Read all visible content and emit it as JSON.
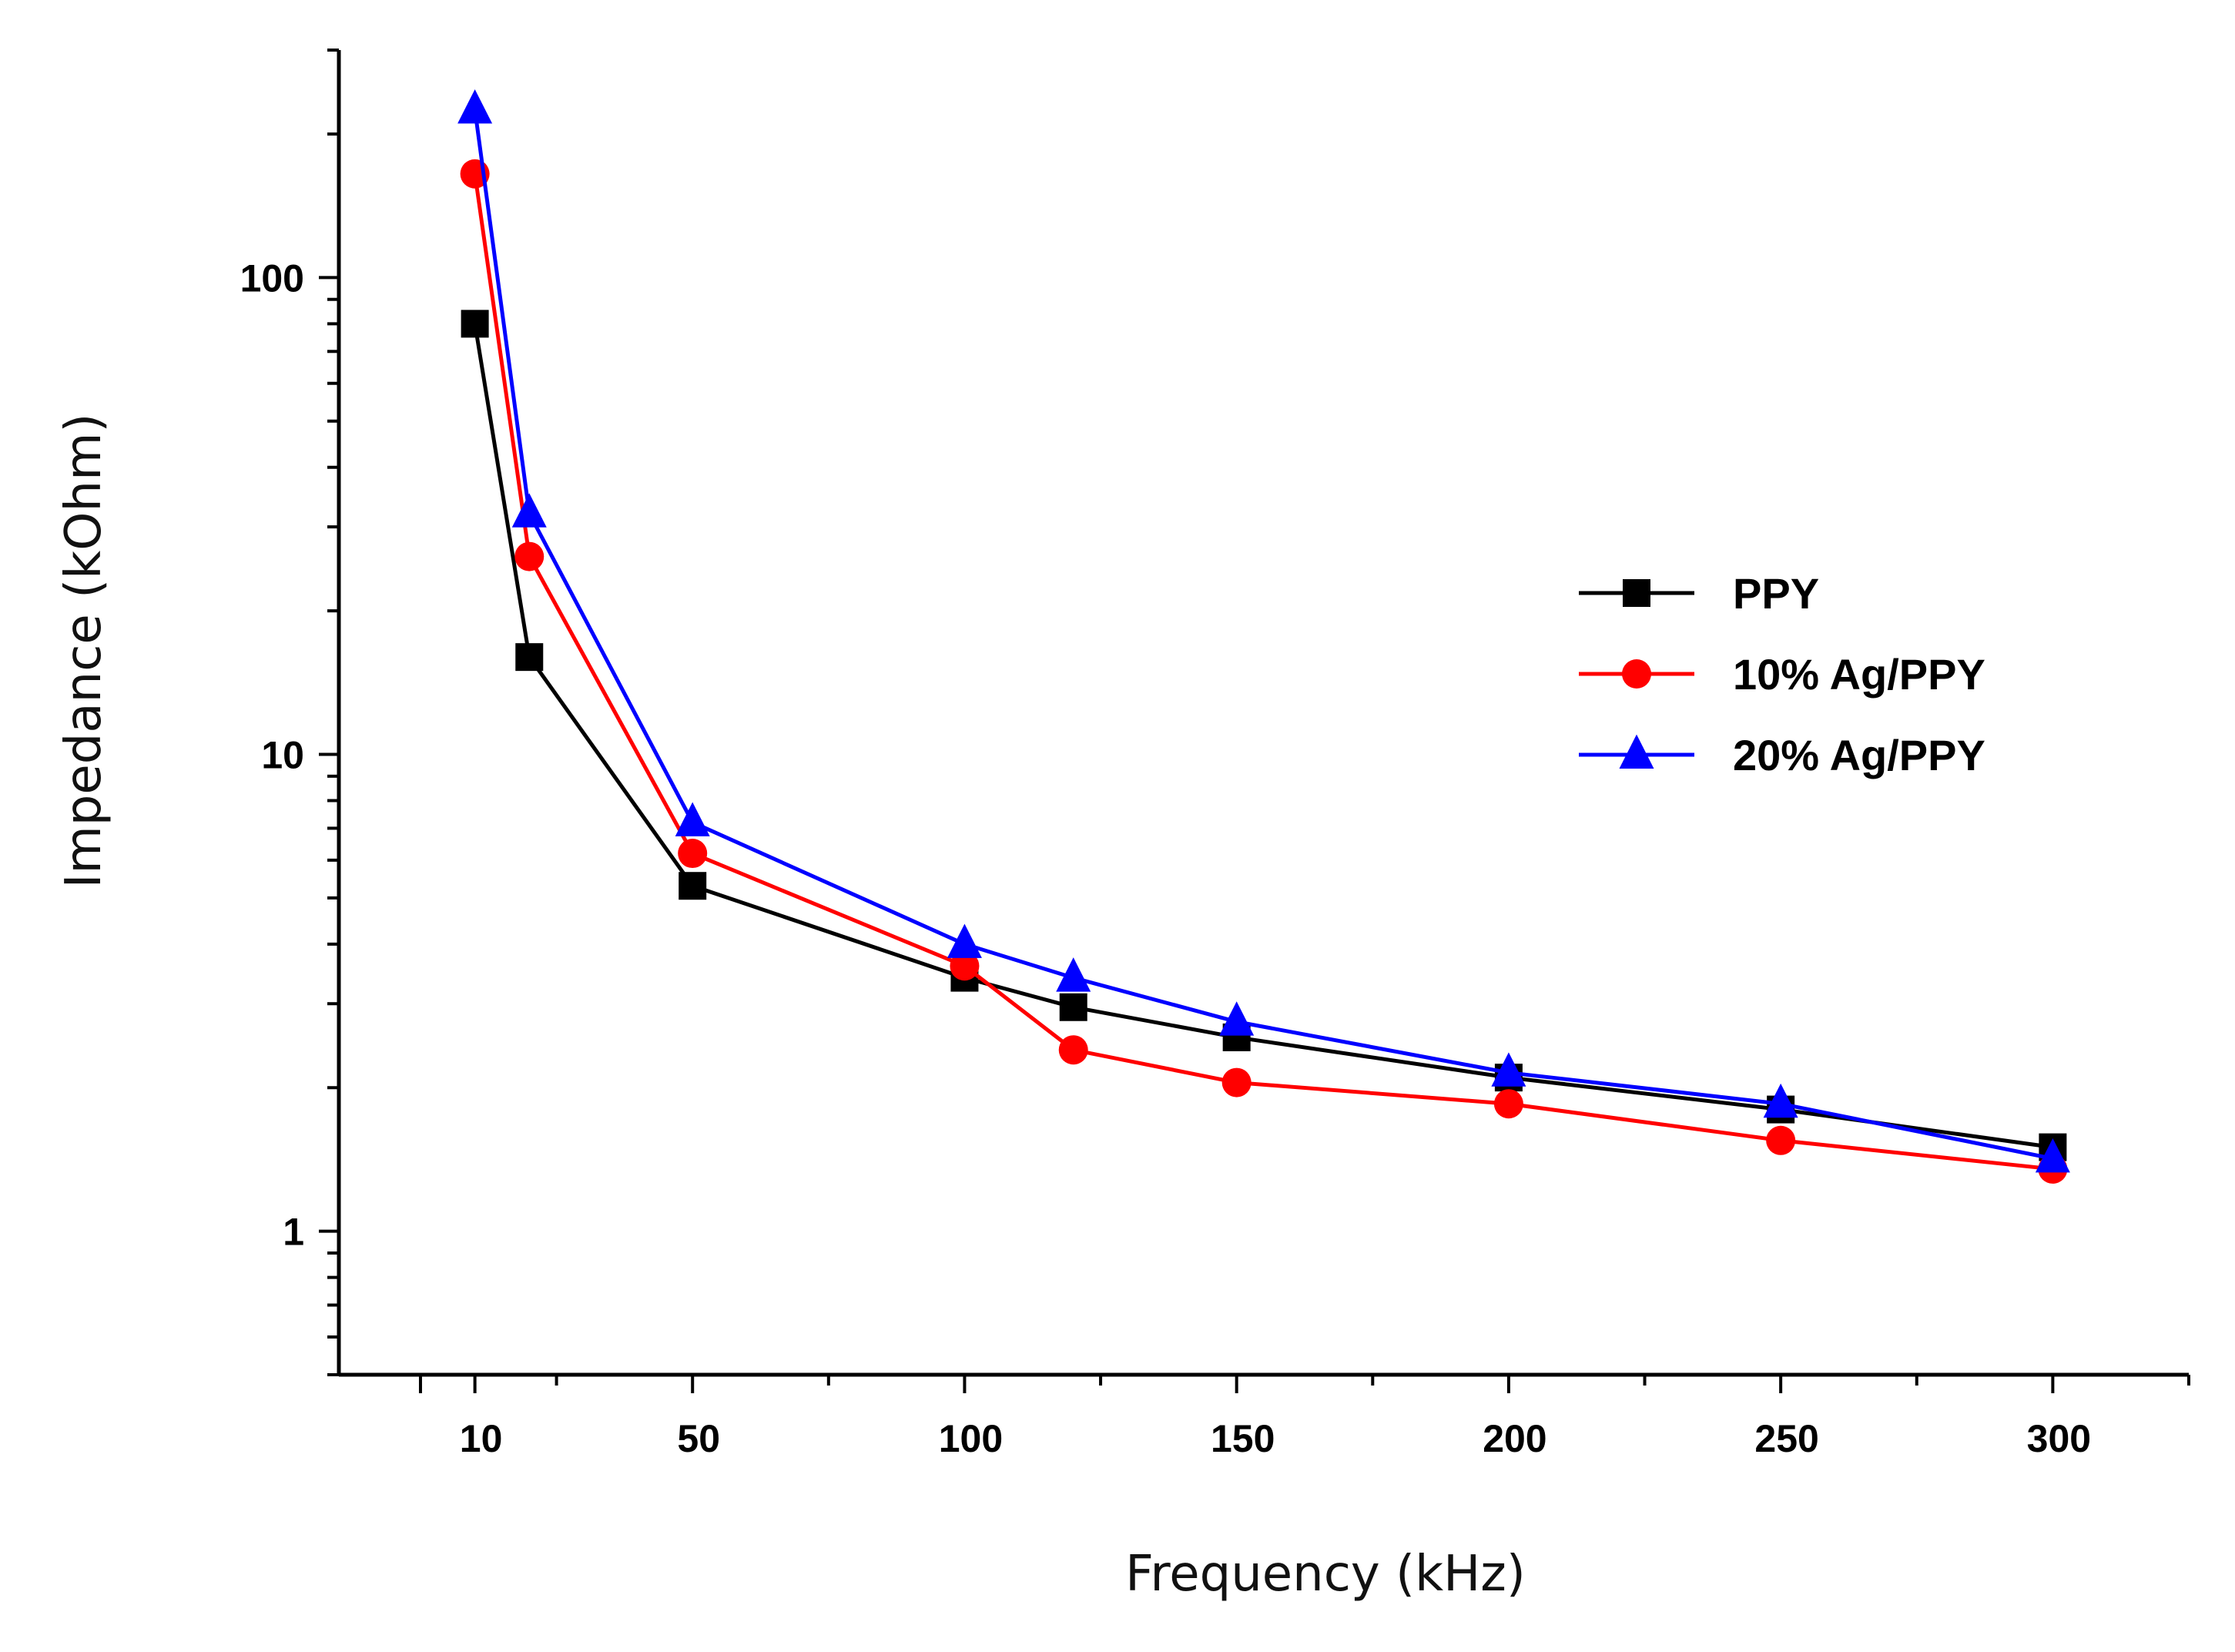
{
  "chart_data": {
    "type": "line",
    "title": "",
    "xlabel": "Frequency (kHz)",
    "ylabel": "Impedance (kOhm)",
    "x_scale": "linear",
    "y_scale": "log",
    "xlim": [
      -15,
      325
    ],
    "ylim": [
      0.5,
      300
    ],
    "x_ticks": [
      10,
      50,
      100,
      150,
      200,
      250,
      300
    ],
    "x_tick_labels": [
      "10",
      "50",
      "100",
      "150",
      "200",
      "250",
      "300"
    ],
    "y_ticks": [
      1,
      10,
      100
    ],
    "y_tick_labels": [
      "1",
      "10",
      "100"
    ],
    "legend_position": "center-right",
    "series": [
      {
        "name": "PPY",
        "color": "#000000",
        "marker": "square",
        "x": [
          10,
          20,
          50,
          100,
          120,
          150,
          200,
          250,
          300
        ],
        "y": [
          80,
          16,
          5.3,
          3.4,
          2.95,
          2.55,
          2.1,
          1.8,
          1.5
        ]
      },
      {
        "name": "10% Ag/PPY",
        "color": "#ff0000",
        "marker": "circle",
        "x": [
          10,
          20,
          50,
          100,
          120,
          150,
          200,
          250,
          300
        ],
        "y": [
          165,
          26,
          6.2,
          3.6,
          2.4,
          2.05,
          1.85,
          1.55,
          1.35
        ]
      },
      {
        "name": "20% Ag/PPY",
        "color": "#0000ff",
        "marker": "triangle",
        "x": [
          10,
          20,
          50,
          100,
          120,
          150,
          200,
          250,
          300
        ],
        "y": [
          225,
          32,
          7.2,
          4.0,
          3.4,
          2.75,
          2.15,
          1.85,
          1.42
        ]
      }
    ]
  }
}
